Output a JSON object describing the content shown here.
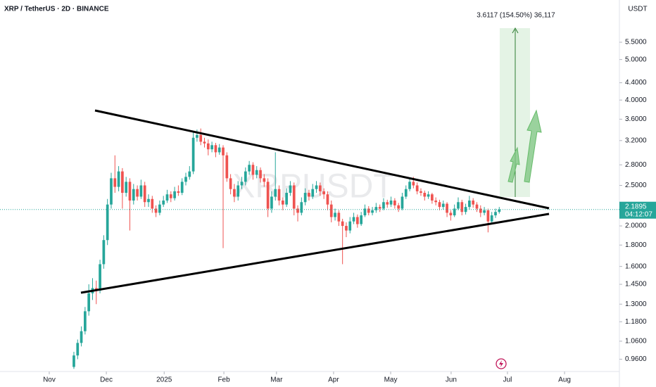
{
  "chart_data": {
    "type": "candlestick",
    "title": "XRP / TetherUS · 2D · BINANCE",
    "watermark": "XRPUSDT",
    "currency": "USDT",
    "countdown": "04:12:07",
    "measure_label": "3.6117 (154.50%) 36,117",
    "log_scale": true,
    "up_color": "#26a69a",
    "down_color": "#ef5350",
    "xlim": [
      -19.8,
      146.2
    ],
    "xticks": [
      {
        "value": -6.6,
        "label": "Nov"
      },
      {
        "value": 8.7,
        "label": "Dec"
      },
      {
        "value": 24.2,
        "label": "2025"
      },
      {
        "value": 40.2,
        "label": "Feb"
      },
      {
        "value": 54.3,
        "label": "Mar"
      },
      {
        "value": 69.6,
        "label": "Apr"
      },
      {
        "value": 84.9,
        "label": "May"
      },
      {
        "value": 101.1,
        "label": "Jun"
      },
      {
        "value": 116.2,
        "label": "Jul"
      },
      {
        "value": 131.5,
        "label": "Aug"
      }
    ],
    "ylim": [
      0.897,
      6.94
    ],
    "yticks": [
      {
        "value": 5.5,
        "label": "5.5000"
      },
      {
        "value": 5.0,
        "label": "5.0000"
      },
      {
        "value": 4.4,
        "label": "4.4000"
      },
      {
        "value": 4.0,
        "label": "4.0000"
      },
      {
        "value": 3.6,
        "label": "3.6000"
      },
      {
        "value": 3.2,
        "label": "3.2000"
      },
      {
        "value": 2.8,
        "label": "2.8000"
      },
      {
        "value": 2.5,
        "label": "2.5000"
      },
      {
        "value": 2.0,
        "label": "2.0000"
      },
      {
        "value": 1.8,
        "label": "1.8000"
      },
      {
        "value": 1.6,
        "label": "1.6000"
      },
      {
        "value": 1.45,
        "label": "1.4500"
      },
      {
        "value": 1.3,
        "label": "1.3000"
      },
      {
        "value": 1.18,
        "label": "1.1800"
      },
      {
        "value": 1.06,
        "label": "1.0600"
      },
      {
        "value": 0.96,
        "label": "0.9600"
      }
    ],
    "last_price_label": "2.1895",
    "ohlc": [
      [
        0.92,
        1.0,
        0.91,
        0.98
      ],
      [
        0.98,
        1.07,
        0.96,
        1.05
      ],
      [
        1.05,
        1.15,
        1.03,
        1.12
      ],
      [
        1.12,
        1.28,
        1.1,
        1.25
      ],
      [
        1.25,
        1.45,
        1.22,
        1.38
      ],
      [
        1.38,
        1.5,
        1.33,
        1.42
      ],
      [
        1.42,
        1.48,
        1.3,
        1.4
      ],
      [
        1.4,
        1.66,
        1.38,
        1.62
      ],
      [
        1.62,
        1.9,
        1.58,
        1.85
      ],
      [
        1.85,
        2.32,
        1.8,
        2.25
      ],
      [
        2.25,
        2.68,
        2.2,
        2.6
      ],
      [
        2.6,
        2.95,
        2.4,
        2.48
      ],
      [
        2.48,
        2.78,
        2.42,
        2.7
      ],
      [
        2.7,
        2.75,
        2.2,
        2.4
      ],
      [
        2.4,
        2.62,
        2.35,
        2.55
      ],
      [
        2.55,
        2.6,
        1.95,
        2.3
      ],
      [
        2.3,
        2.52,
        2.25,
        2.45
      ],
      [
        2.45,
        2.5,
        2.3,
        2.35
      ],
      [
        2.35,
        2.58,
        2.32,
        2.5
      ],
      [
        2.5,
        2.55,
        2.22,
        2.28
      ],
      [
        2.28,
        2.38,
        2.22,
        2.32
      ],
      [
        2.32,
        2.36,
        2.15,
        2.2
      ],
      [
        2.2,
        2.24,
        2.1,
        2.15
      ],
      [
        2.15,
        2.3,
        2.12,
        2.25
      ],
      [
        2.25,
        2.36,
        2.22,
        2.3
      ],
      [
        2.3,
        2.44,
        2.27,
        2.38
      ],
      [
        2.38,
        2.42,
        2.28,
        2.33
      ],
      [
        2.33,
        2.48,
        2.3,
        2.42
      ],
      [
        2.42,
        2.5,
        2.36,
        2.4
      ],
      [
        2.4,
        2.6,
        2.37,
        2.55
      ],
      [
        2.55,
        2.68,
        2.5,
        2.62
      ],
      [
        2.62,
        2.78,
        2.58,
        2.7
      ],
      [
        2.7,
        3.35,
        2.66,
        3.25
      ],
      [
        3.25,
        3.4,
        3.18,
        3.3
      ],
      [
        3.3,
        3.42,
        3.12,
        3.18
      ],
      [
        3.18,
        3.25,
        3.08,
        3.15
      ],
      [
        3.15,
        3.22,
        2.95,
        3.05
      ],
      [
        3.05,
        3.18,
        3.0,
        3.12
      ],
      [
        3.12,
        3.16,
        2.92,
        3.0
      ],
      [
        3.0,
        3.14,
        2.96,
        3.08
      ],
      [
        3.08,
        3.12,
        1.77,
        2.95
      ],
      [
        2.95,
        3.0,
        2.55,
        2.6
      ],
      [
        2.6,
        2.66,
        2.38,
        2.45
      ],
      [
        2.45,
        2.52,
        2.28,
        2.35
      ],
      [
        2.35,
        2.56,
        2.3,
        2.5
      ],
      [
        2.5,
        2.62,
        2.45,
        2.55
      ],
      [
        2.55,
        2.76,
        2.5,
        2.7
      ],
      [
        2.7,
        2.86,
        2.65,
        2.8
      ],
      [
        2.8,
        2.84,
        2.58,
        2.65
      ],
      [
        2.65,
        2.78,
        2.6,
        2.72
      ],
      [
        2.72,
        2.76,
        2.54,
        2.6
      ],
      [
        2.6,
        2.66,
        2.48,
        2.55
      ],
      [
        2.55,
        2.6,
        2.1,
        2.2
      ],
      [
        2.2,
        2.42,
        2.15,
        2.35
      ],
      [
        2.35,
        3.0,
        2.3,
        2.45
      ],
      [
        2.45,
        2.5,
        2.24,
        2.3
      ],
      [
        2.3,
        2.34,
        2.18,
        2.25
      ],
      [
        2.25,
        2.46,
        2.22,
        2.4
      ],
      [
        2.4,
        2.56,
        2.36,
        2.5
      ],
      [
        2.5,
        2.54,
        2.12,
        2.2
      ],
      [
        2.2,
        2.24,
        2.05,
        2.15
      ],
      [
        2.15,
        2.34,
        2.12,
        2.28
      ],
      [
        2.28,
        2.46,
        2.24,
        2.4
      ],
      [
        2.4,
        2.44,
        2.3,
        2.35
      ],
      [
        2.35,
        2.52,
        2.32,
        2.45
      ],
      [
        2.45,
        2.56,
        2.4,
        2.5
      ],
      [
        2.5,
        2.54,
        2.36,
        2.42
      ],
      [
        2.42,
        2.46,
        2.32,
        2.38
      ],
      [
        2.38,
        2.42,
        2.18,
        2.25
      ],
      [
        2.25,
        2.3,
        2.04,
        2.1
      ],
      [
        2.1,
        2.2,
        2.06,
        2.15
      ],
      [
        2.15,
        2.18,
        2.0,
        2.05
      ],
      [
        2.05,
        2.08,
        1.62,
        2.0
      ],
      [
        2.0,
        2.04,
        1.88,
        1.95
      ],
      [
        1.95,
        2.1,
        1.92,
        2.05
      ],
      [
        2.05,
        2.15,
        2.02,
        2.1
      ],
      [
        2.1,
        2.13,
        1.98,
        2.02
      ],
      [
        2.02,
        2.16,
        2.0,
        2.12
      ],
      [
        2.12,
        2.25,
        2.1,
        2.2
      ],
      [
        2.2,
        2.23,
        2.12,
        2.15
      ],
      [
        2.15,
        2.22,
        2.12,
        2.18
      ],
      [
        2.18,
        2.27,
        2.15,
        2.22
      ],
      [
        2.22,
        2.25,
        2.16,
        2.2
      ],
      [
        2.2,
        2.33,
        2.18,
        2.28
      ],
      [
        2.28,
        2.31,
        2.21,
        2.25
      ],
      [
        2.25,
        2.35,
        2.22,
        2.3
      ],
      [
        2.3,
        2.33,
        2.2,
        2.24
      ],
      [
        2.24,
        2.27,
        2.16,
        2.2
      ],
      [
        2.2,
        2.4,
        2.18,
        2.35
      ],
      [
        2.35,
        2.5,
        2.32,
        2.45
      ],
      [
        2.45,
        2.6,
        2.42,
        2.55
      ],
      [
        2.55,
        2.62,
        2.46,
        2.5
      ],
      [
        2.5,
        2.54,
        2.38,
        2.42
      ],
      [
        2.42,
        2.46,
        2.36,
        2.4
      ],
      [
        2.4,
        2.43,
        2.3,
        2.35
      ],
      [
        2.35,
        2.42,
        2.32,
        2.38
      ],
      [
        2.38,
        2.4,
        2.26,
        2.3
      ],
      [
        2.3,
        2.34,
        2.24,
        2.28
      ],
      [
        2.28,
        2.31,
        2.18,
        2.22
      ],
      [
        2.22,
        2.3,
        2.19,
        2.26
      ],
      [
        2.26,
        2.28,
        2.1,
        2.15
      ],
      [
        2.15,
        2.18,
        2.06,
        2.12
      ],
      [
        2.12,
        2.25,
        2.1,
        2.2
      ],
      [
        2.2,
        2.34,
        2.18,
        2.28
      ],
      [
        2.28,
        2.31,
        2.12,
        2.16
      ],
      [
        2.16,
        2.26,
        2.13,
        2.22
      ],
      [
        2.22,
        2.36,
        2.19,
        2.3
      ],
      [
        2.3,
        2.33,
        2.21,
        2.25
      ],
      [
        2.25,
        2.28,
        2.16,
        2.2
      ],
      [
        2.2,
        2.24,
        2.1,
        2.15
      ],
      [
        2.15,
        2.22,
        2.12,
        2.18
      ],
      [
        2.18,
        2.2,
        1.93,
        2.05
      ],
      [
        2.05,
        2.16,
        2.02,
        2.12
      ],
      [
        2.12,
        2.2,
        2.09,
        2.16
      ],
      [
        2.16,
        2.22,
        2.14,
        2.1895
      ]
    ]
  }
}
